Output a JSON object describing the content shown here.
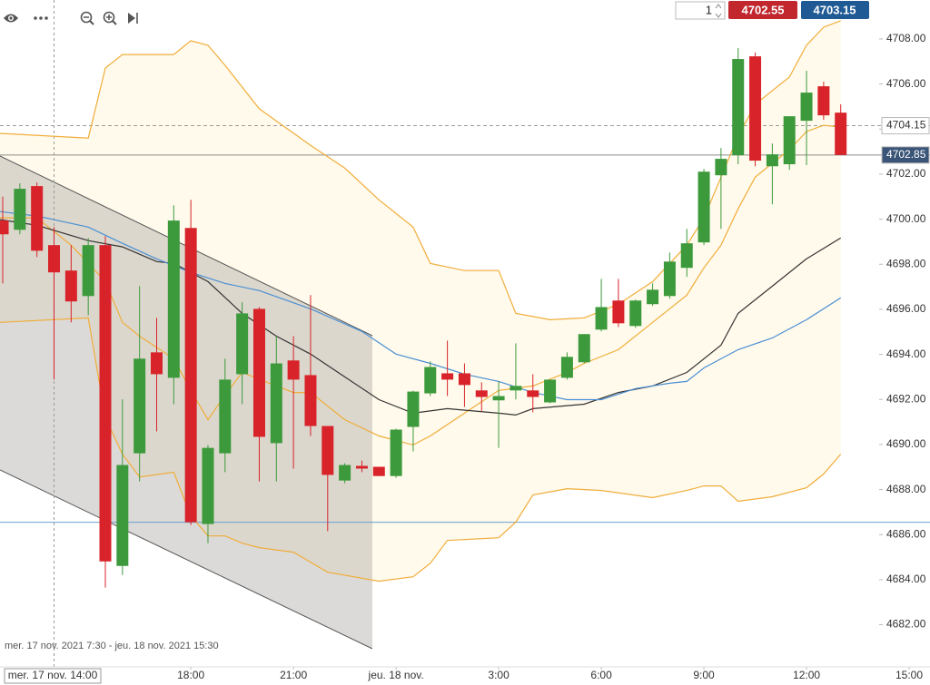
{
  "toolbar": {
    "quantity": 1,
    "sell": 4702.55,
    "buy": 4703.15
  },
  "chart_data": {
    "type": "candlestick",
    "date_range": "mer. 17 nov. 2021 7:30 - jeu. 18 nov. 2021 15:30",
    "x": [
      12.5,
      13,
      13.5,
      14,
      14.5,
      15,
      15.5,
      16,
      16.5,
      17,
      17.5,
      18,
      18.5,
      19,
      19.5,
      20,
      20.5,
      21,
      21.5,
      22,
      22.5,
      23,
      23.5,
      24,
      24.5,
      25,
      25.5,
      26,
      26.5,
      27,
      27.5,
      28,
      28.5,
      29,
      29.5,
      30,
      30.5,
      31,
      31.5,
      32,
      32.5,
      33,
      33.5,
      34,
      34.5,
      35,
      35.5,
      36,
      36.5,
      37
    ],
    "open": [
      4699.94,
      4699.53,
      4701.47,
      4698.85,
      4697.72,
      4696.59,
      4698.85,
      4684.61,
      4689.61,
      4694.09,
      4692.96,
      4699.61,
      4686.47,
      4689.61,
      4693.12,
      4696.02,
      4690.06,
      4693.73,
      4693.08,
      4690.82,
      4688.4,
      4689.05,
      4689.01,
      4688.6,
      4690.78,
      4692.27,
      4693.16,
      4693.16,
      4692.4,
      4691.96,
      4692.4,
      4692.4,
      4691.87,
      4692.96,
      4693.65,
      4695.1,
      4696.39,
      4695.26,
      4696.23,
      4696.59,
      4697.84,
      4698.97,
      4701.95,
      4702.84,
      4707.23,
      4702.35,
      4702.44,
      4704.37,
      4705.9,
      4704.73
    ],
    "high": [
      4701.0,
      4701.59,
      4701.63,
      4699.65,
      4698.85,
      4699.17,
      4699.25,
      4692.0,
      4697.03,
      4695.62,
      4700.62,
      4700.86,
      4689.98,
      4693.81,
      4696.31,
      4696.1,
      4694.81,
      4694.81,
      4696.63,
      4690.82,
      4689.17,
      4689.29,
      4689.01,
      4690.7,
      4692.39,
      4693.69,
      4694.61,
      4693.6,
      4692.76,
      4692.8,
      4694.49,
      4693.12,
      4692.88,
      4694.09,
      4694.9,
      4697.35,
      4697.35,
      4696.43,
      4697.15,
      4698.52,
      4699.57,
      4702.23,
      4703.16,
      4707.6,
      4707.4,
      4703.36,
      4704.57,
      4706.59,
      4706.1,
      4705.1
    ],
    "low": [
      4697.15,
      4699.33,
      4698.32,
      4692.88,
      4695.42,
      4695.74,
      4683.65,
      4684.21,
      4688.36,
      4690.58,
      4691.79,
      4686.43,
      4685.62,
      4688.77,
      4691.79,
      4688.36,
      4688.36,
      4688.93,
      4690.38,
      4686.15,
      4688.28,
      4688.77,
      4688.6,
      4688.52,
      4689.69,
      4692.15,
      4692.15,
      4691.67,
      4691.47,
      4689.85,
      4692.0,
      4691.43,
      4691.83,
      4692.88,
      4693.6,
      4695.02,
      4695.22,
      4695.18,
      4696.15,
      4696.47,
      4697.44,
      4698.85,
      4699.57,
      4702.44,
      4702.35,
      4700.66,
      4702.19,
      4702.4,
      4704.41,
      4702.85
    ],
    "close": [
      4699.33,
      4701.35,
      4698.6,
      4697.64,
      4696.35,
      4698.85,
      4684.81,
      4689.09,
      4693.81,
      4693.12,
      4699.94,
      4686.55,
      4689.85,
      4692.88,
      4695.82,
      4690.34,
      4693.6,
      4692.88,
      4690.82,
      4688.65,
      4689.09,
      4688.93,
      4688.6,
      4690.66,
      4692.35,
      4693.44,
      4692.88,
      4692.64,
      4692.11,
      4692.15,
      4692.6,
      4692.11,
      4692.88,
      4693.89,
      4694.9,
      4696.1,
      4695.38,
      4696.39,
      4696.87,
      4698.12,
      4698.93,
      4702.11,
      4702.68,
      4707.11,
      4702.6,
      4702.88,
      4704.57,
      4705.62,
      4704.61,
      4702.85
    ],
    "up_color": "#3c9a3c",
    "down_color": "#d8232a",
    "lines": [
      {
        "color": "#f0ad3a",
        "x": [
          12.42,
          15,
          15.5,
          16,
          17,
          17.5,
          18,
          18.5,
          19,
          20,
          21.5,
          22.5,
          23.5,
          24.5,
          25,
          26,
          27,
          27.5,
          28.5,
          29.5,
          30.5,
          31.5,
          32.5,
          33,
          33.5,
          34,
          34.5,
          35.5,
          36,
          36.5,
          37
        ],
        "values": [
          4703.81,
          4703.6,
          4706.71,
          4707.31,
          4707.31,
          4707.31,
          4707.92,
          4707.72,
          4706.83,
          4704.9,
          4703.28,
          4702.27,
          4700.86,
          4699.65,
          4698.04,
          4697.72,
          4697.72,
          4695.82,
          4695.54,
          4695.62,
          4696.23,
          4697.23,
          4698.85,
          4700.06,
          4701.87,
          4703.69,
          4705.1,
          4706.31,
          4707.72,
          4708.52,
          4708.81
        ]
      },
      {
        "color": "#f0ad3a",
        "x": [
          12.42,
          13.5,
          14.5,
          15,
          15.5,
          16,
          16.5,
          17.5,
          18,
          18.5,
          19,
          19.5,
          20.5,
          21,
          21.5,
          22.5,
          23.5,
          24.5,
          25,
          26,
          27,
          28,
          29,
          29.5,
          30.5,
          31.5,
          32.5,
          33,
          33.5,
          34,
          34.5,
          35,
          35.5,
          36,
          36.5,
          37
        ],
        "values": [
          4700.06,
          4700.06,
          4698.85,
          4698.04,
          4697.23,
          4695.42,
          4694.81,
          4693.81,
          4692.4,
          4691.1,
          4692.19,
          4693.2,
          4692.6,
          4692.31,
          4692.31,
          4691.1,
          4690.38,
          4689.98,
          4690.38,
          4691.39,
          4692.4,
          4692.6,
          4693.2,
          4693.6,
          4694.21,
          4695.42,
          4696.63,
          4697.84,
          4698.85,
          4700.46,
          4701.87,
          4702.48,
          4703.08,
          4703.89,
          4704.17,
          4704.09
        ]
      },
      {
        "color": "#f0ad3a",
        "x": [
          12.42,
          15,
          15.5,
          16,
          16.5,
          17.5,
          18,
          18.5,
          19,
          19.5,
          20,
          21,
          22,
          23.5,
          24.5,
          25,
          25.5,
          27,
          27.5,
          28,
          29,
          30,
          31.5,
          32.5,
          33,
          33.5,
          34,
          35,
          36,
          36.5,
          37
        ],
        "values": [
          4695.42,
          4695.62,
          4691.19,
          4689.57,
          4688.56,
          4688.77,
          4686.83,
          4685.94,
          4685.94,
          4685.62,
          4685.42,
          4685.22,
          4684.33,
          4683.93,
          4684.13,
          4684.73,
          4685.74,
          4685.86,
          4686.55,
          4687.76,
          4688.04,
          4687.96,
          4687.64,
          4687.96,
          4688.16,
          4688.16,
          4687.48,
          4687.68,
          4688.08,
          4688.69,
          4689.57
        ]
      },
      {
        "color": "#333333",
        "x": [
          12.42,
          13.5,
          15,
          16,
          17,
          17.5,
          18.5,
          19.5,
          20.5,
          21.5,
          22.5,
          23.5,
          24.5,
          25.5,
          27,
          27.5,
          28,
          29.5,
          30.5,
          31.5,
          32.5,
          33.5,
          34,
          35,
          36,
          37
        ],
        "values": [
          4699.98,
          4699.73,
          4699.05,
          4698.77,
          4698.12,
          4698.04,
          4697.23,
          4695.82,
          4694.81,
          4694.01,
          4693.0,
          4691.99,
          4691.39,
          4691.59,
          4691.39,
          4691.31,
          4691.59,
          4691.79,
          4692.31,
          4692.6,
          4693.2,
          4694.41,
          4695.82,
          4697.03,
          4698.24,
          4699.17
        ]
      },
      {
        "color": "#4a8fd4",
        "x": [
          12.42,
          13.5,
          15,
          16,
          17,
          18,
          19,
          20,
          21.5,
          23,
          24,
          25,
          26,
          27,
          28,
          29,
          30,
          31,
          32,
          32.5,
          33,
          34,
          35,
          36,
          37
        ],
        "values": [
          4700.34,
          4700.14,
          4699.65,
          4698.93,
          4698.24,
          4697.64,
          4697.15,
          4696.83,
          4696.02,
          4695.02,
          4694.01,
          4693.6,
          4693.12,
          4692.8,
          4692.31,
          4691.99,
          4691.99,
          4692.48,
          4692.72,
          4692.8,
          4693.4,
          4694.21,
          4694.73,
          4695.54,
          4696.51
        ]
      }
    ],
    "band_fill": "#fffaeb",
    "price_lines": [
      {
        "value": 4704.15,
        "color": "#9a9a9a",
        "dashed": true,
        "label_bg": "#ffffff",
        "label_color": "#333333"
      },
      {
        "value": 4702.85,
        "color": "#8a8a8a",
        "dashed": false,
        "label_bg": "#3b5578",
        "label_color": "#ffffff"
      },
      {
        "value": 4686.55,
        "color": "#6a9fd0",
        "dashed": false
      }
    ],
    "crosshair": {
      "value": 14,
      "label": "mer. 17 nov. 14:00"
    },
    "xlim": [
      12.42,
      39.61
    ],
    "ylim": [
      4680.13,
      4709.73
    ],
    "xticks": [
      {
        "value": 18,
        "label": "18:00"
      },
      {
        "value": 21,
        "label": "21:00"
      },
      {
        "value": 24,
        "label": "jeu. 18 nov."
      },
      {
        "value": 27,
        "label": "3:00"
      },
      {
        "value": 30,
        "label": "6:00"
      },
      {
        "value": 33,
        "label": "9:00"
      },
      {
        "value": 36,
        "label": "12:00"
      },
      {
        "value": 39,
        "label": "15:00"
      }
    ],
    "yticks": [
      {
        "value": 4682,
        "label": "4682.00"
      },
      {
        "value": 4684,
        "label": "4684.00"
      },
      {
        "value": 4686,
        "label": "4686.00"
      },
      {
        "value": 4688,
        "label": "4688.00"
      },
      {
        "value": 4690,
        "label": "4690.00"
      },
      {
        "value": 4692,
        "label": "4692.00"
      },
      {
        "value": 4694,
        "label": "4694.00"
      },
      {
        "value": 4696,
        "label": "4696.00"
      },
      {
        "value": 4698,
        "label": "4698.00"
      },
      {
        "value": 4700,
        "label": "4700.00"
      },
      {
        "value": 4702,
        "label": "4702.00"
      },
      {
        "value": 4704,
        "label": "4704.00"
      },
      {
        "value": 4706,
        "label": "4706.00"
      },
      {
        "value": 4708,
        "label": "4708.00"
      }
    ],
    "grid": false
  }
}
